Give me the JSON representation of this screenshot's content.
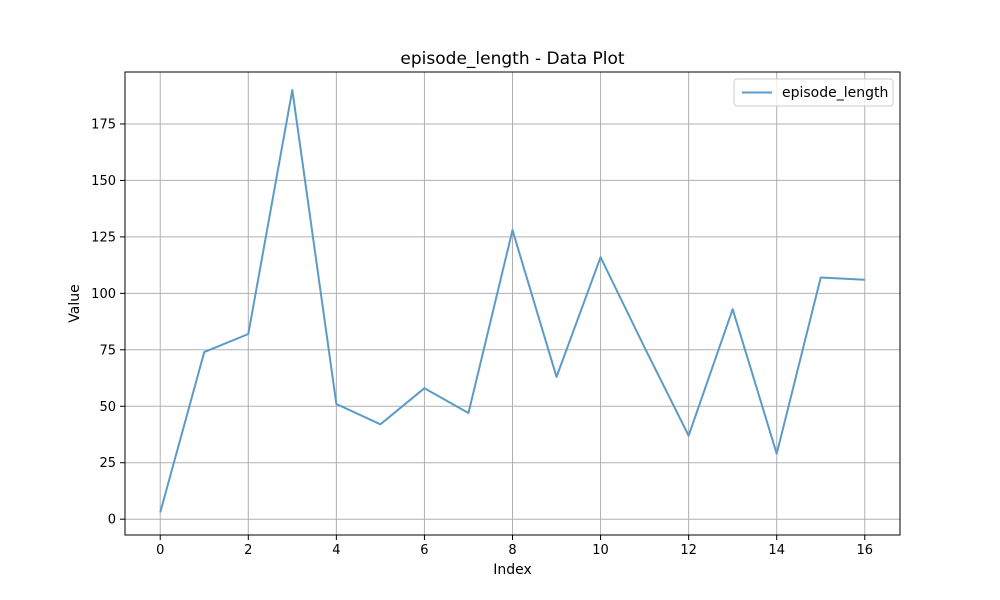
{
  "chart_data": {
    "type": "line",
    "title": "episode_length - Data Plot",
    "xlabel": "Index",
    "ylabel": "Value",
    "x": [
      0,
      1,
      2,
      3,
      4,
      5,
      6,
      7,
      8,
      9,
      10,
      11,
      12,
      13,
      14,
      15,
      16
    ],
    "series": [
      {
        "name": "episode_length",
        "color": "#5b9bc8",
        "values": [
          3,
          74,
          82,
          190,
          51,
          42,
          58,
          47,
          128,
          63,
          116,
          76,
          37,
          93,
          29,
          107,
          106
        ]
      }
    ],
    "xlim": [
      -0.8,
      16.8
    ],
    "ylim": [
      -7,
      198
    ],
    "xticks": [
      0,
      2,
      4,
      6,
      8,
      10,
      12,
      14,
      16
    ],
    "yticks": [
      0,
      25,
      50,
      75,
      100,
      125,
      150,
      175
    ],
    "grid": true,
    "legend_position": "top-right"
  }
}
